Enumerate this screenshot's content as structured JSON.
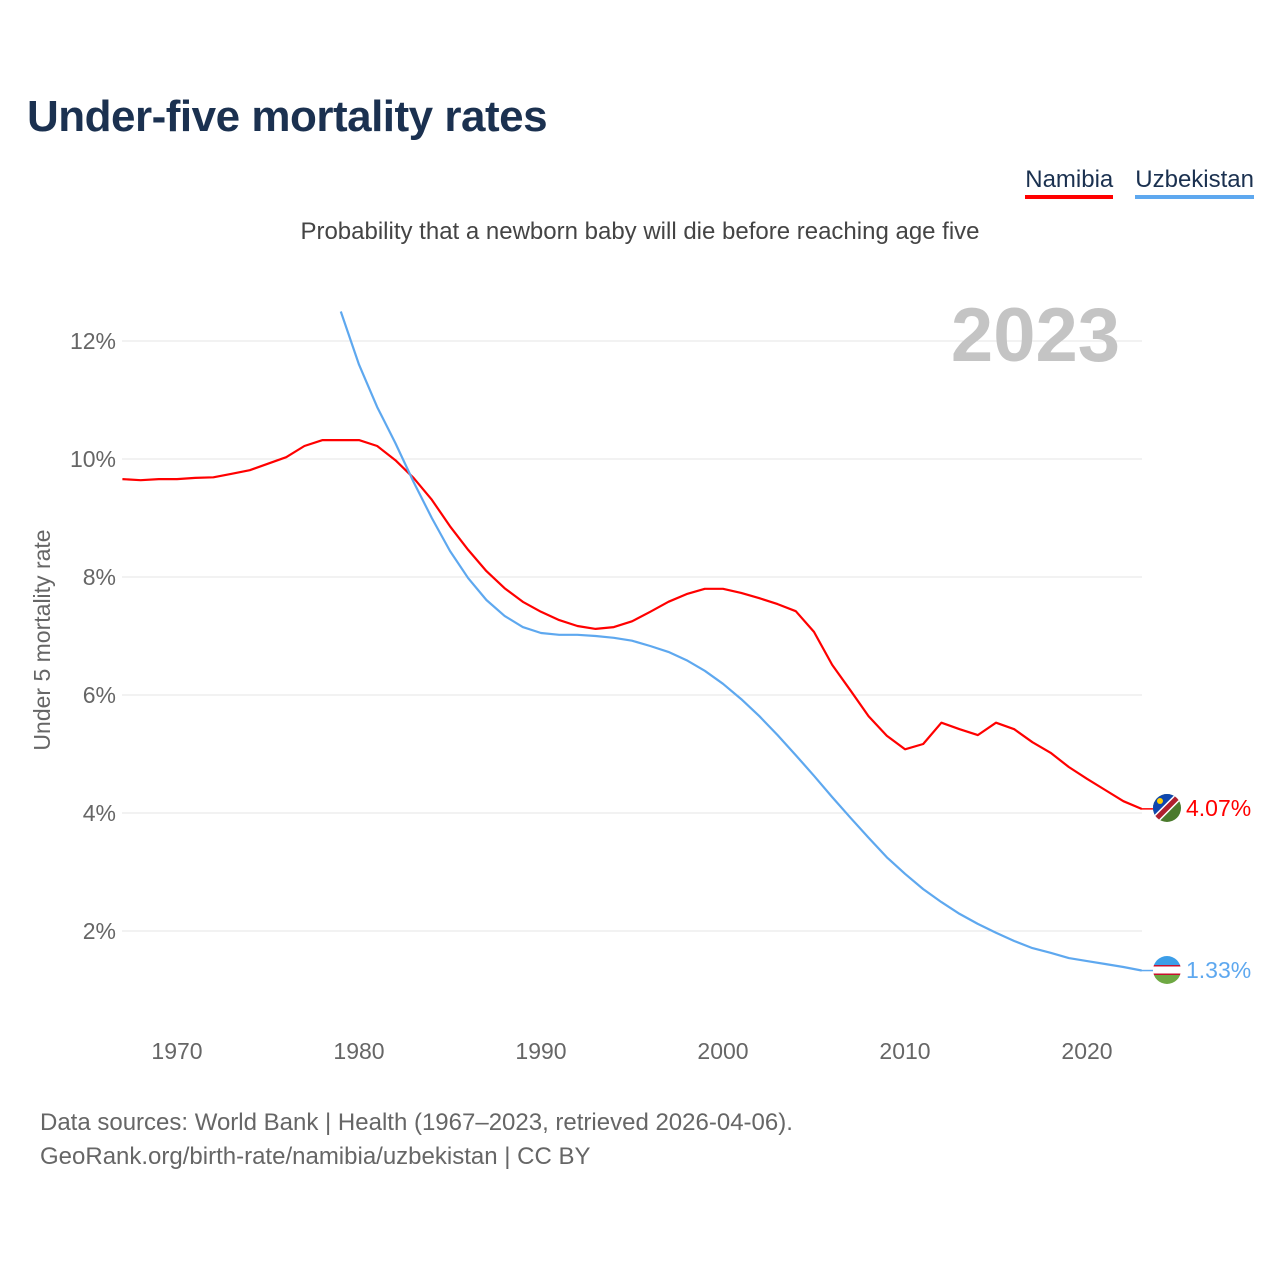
{
  "title": "Under-five mortality rates",
  "subtitle": "Probability that a newborn baby will die before reaching age five",
  "footer": {
    "line1": "Data sources: World Bank | Health (1967–2023, retrieved 2026-04-06).",
    "line2": "GeoRank.org/birth-rate/namibia/uzbekistan | CC BY"
  },
  "chart_data": {
    "type": "line",
    "title": "Under-five mortality rates",
    "year_label": "2023",
    "xlabel": "",
    "ylabel": "Under 5 mortality rate",
    "xlim": [
      1967,
      2023
    ],
    "ylim": [
      0.7,
      12.5
    ],
    "grid": true,
    "legend": "top-right",
    "x_ticks": [
      {
        "value": 1970,
        "label": "1970"
      },
      {
        "value": 1980,
        "label": "1980"
      },
      {
        "value": 1990,
        "label": "1990"
      },
      {
        "value": 2000,
        "label": "2000"
      },
      {
        "value": 2010,
        "label": "2010"
      },
      {
        "value": 2020,
        "label": "2020"
      }
    ],
    "y_ticks": [
      {
        "value": 2,
        "label": "2%"
      },
      {
        "value": 4,
        "label": "4%"
      },
      {
        "value": 6,
        "label": "6%"
      },
      {
        "value": 8,
        "label": "8%"
      },
      {
        "value": 10,
        "label": "10%"
      },
      {
        "value": 12,
        "label": "12%"
      }
    ],
    "series": [
      {
        "name": "Namibia",
        "color": "#ff0000",
        "end_label": "4.07%",
        "flag": "namibia-flag",
        "start_year": 1967,
        "values": [
          9.66,
          9.64,
          9.66,
          9.66,
          9.68,
          9.69,
          9.75,
          9.81,
          9.92,
          10.03,
          10.22,
          10.32,
          10.32,
          10.32,
          10.22,
          9.98,
          9.68,
          9.31,
          8.86,
          8.46,
          8.1,
          7.81,
          7.58,
          7.41,
          7.27,
          7.17,
          7.12,
          7.15,
          7.25,
          7.41,
          7.58,
          7.71,
          7.8,
          7.8,
          7.73,
          7.64,
          7.54,
          7.42,
          7.07,
          6.51,
          6.08,
          5.64,
          5.31,
          5.08,
          5.17,
          5.53,
          5.42,
          5.32,
          5.53,
          5.42,
          5.2,
          5.02,
          4.78,
          4.58,
          4.39,
          4.2,
          4.07
        ]
      },
      {
        "name": "Uzbekistan",
        "color": "#5ea8ef",
        "end_label": "1.33%",
        "flag": "uzbekistan-flag",
        "start_year": 1979,
        "values": [
          12.5,
          11.6,
          10.88,
          10.27,
          9.61,
          9.0,
          8.44,
          7.98,
          7.61,
          7.34,
          7.15,
          7.05,
          7.02,
          7.02,
          7.0,
          6.97,
          6.92,
          6.83,
          6.73,
          6.59,
          6.41,
          6.19,
          5.93,
          5.64,
          5.32,
          4.98,
          4.63,
          4.27,
          3.92,
          3.58,
          3.25,
          2.97,
          2.71,
          2.49,
          2.29,
          2.12,
          1.97,
          1.83,
          1.71,
          1.63,
          1.54,
          1.49,
          1.44,
          1.39,
          1.33
        ]
      }
    ]
  }
}
